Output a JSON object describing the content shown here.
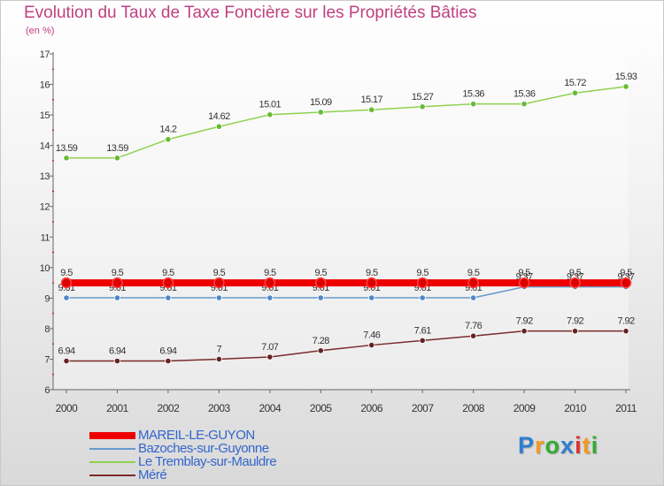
{
  "title": "Evolution du Taux de Taxe Foncière sur les Propriétés Bâties",
  "subtitle": "(en %)",
  "brand": {
    "letters": [
      {
        "char": "P",
        "color": "#2d7fd0"
      },
      {
        "char": "r",
        "color": "#f29a1f"
      },
      {
        "char": "o",
        "color": "#33aa33"
      },
      {
        "char": "x",
        "color": "#2d7fd0"
      },
      {
        "char": "i",
        "color": "#e03030"
      },
      {
        "char": "t",
        "color": "#f29a1f"
      },
      {
        "char": "i",
        "color": "#33aa33"
      }
    ]
  },
  "chart_data": {
    "type": "line",
    "x": [
      "2000",
      "2001",
      "2002",
      "2003",
      "2004",
      "2005",
      "2006",
      "2007",
      "2008",
      "2009",
      "2010",
      "2011"
    ],
    "ylim": [
      6,
      17
    ],
    "yticks": [
      6,
      7,
      8,
      9,
      10,
      11,
      12,
      13,
      14,
      15,
      16,
      17
    ],
    "grid": false,
    "legend_position": "bottom-left",
    "series": [
      {
        "name": "Le Tremblay-sur-Mauldre",
        "color": "#8fd14f",
        "marker_color": "#66bb33",
        "values": [
          13.59,
          13.59,
          14.2,
          14.62,
          15.01,
          15.09,
          15.17,
          15.27,
          15.36,
          15.36,
          15.72,
          15.93
        ],
        "labels": [
          "13.59",
          "13.59",
          "14.2",
          "14.62",
          "15.01",
          "15.09",
          "15.17",
          "15.27",
          "15.36",
          "15.36",
          "15.72",
          "15.93"
        ]
      },
      {
        "name": "Bazoches-sur-Guyonne",
        "color": "#6699cc",
        "marker_color": "#4f86c6",
        "values": [
          9.01,
          9.01,
          9.01,
          9.01,
          9.01,
          9.01,
          9.01,
          9.01,
          9.01,
          9.37,
          9.37,
          9.37
        ],
        "labels": [
          "9.01",
          "9.01",
          "9.01",
          "9.01",
          "9.01",
          "9.01",
          "9.01",
          "9.01",
          "9.01",
          "9.37",
          "9.37",
          "9.37"
        ]
      },
      {
        "name": "MAREIL-LE-GUYON",
        "color": "#ee0000",
        "marker_color": "#dd0000",
        "thick": true,
        "values": [
          9.5,
          9.5,
          9.5,
          9.5,
          9.5,
          9.5,
          9.5,
          9.5,
          9.5,
          9.5,
          9.5,
          9.5
        ],
        "labels": [
          "9.5",
          "9.5",
          "9.5",
          "9.5",
          "9.5",
          "9.5",
          "9.5",
          "9.5",
          "9.5",
          "9.5",
          "9.5",
          "9.5"
        ]
      },
      {
        "name": "Méré",
        "color": "#7a2a2a",
        "marker_color": "#662222",
        "values": [
          6.94,
          6.94,
          6.94,
          7.0,
          7.07,
          7.28,
          7.46,
          7.61,
          7.76,
          7.92,
          7.92,
          7.92
        ],
        "labels": [
          "6.94",
          "6.94",
          "6.94",
          "7",
          "7.07",
          "7.28",
          "7.46",
          "7.61",
          "7.76",
          "7.92",
          "7.92",
          "7.92"
        ]
      }
    ],
    "legend": [
      {
        "name": "MAREIL-LE-GUYON",
        "color": "#ee0000",
        "thick": true
      },
      {
        "name": "Bazoches-sur-Guyonne",
        "color": "#6699cc"
      },
      {
        "name": "Le Tremblay-sur-Mauldre",
        "color": "#8fd14f"
      },
      {
        "name": "Méré",
        "color": "#7a2a2a"
      }
    ]
  }
}
